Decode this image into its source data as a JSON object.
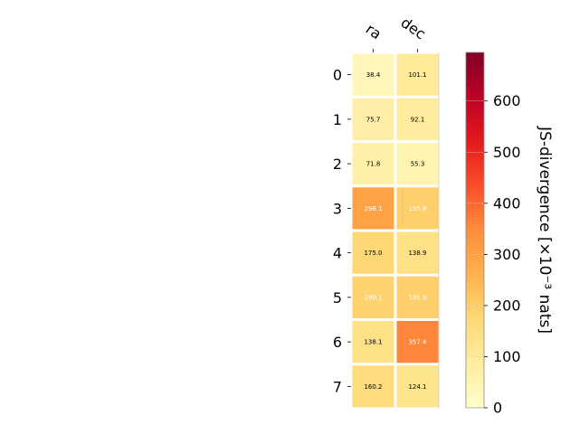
{
  "chart_data": {
    "type": "heatmap",
    "columns": [
      "ra",
      "dec"
    ],
    "rows": [
      "0",
      "1",
      "2",
      "3",
      "4",
      "5",
      "6",
      "7"
    ],
    "values": [
      [
        38.4,
        101.1
      ],
      [
        75.7,
        92.1
      ],
      [
        71.8,
        55.3
      ],
      [
        298.1,
        195.8
      ],
      [
        175.0,
        138.9
      ],
      [
        190.1,
        195.9
      ],
      [
        138.1,
        357.4
      ],
      [
        160.2,
        124.1
      ]
    ],
    "cell_labels": [
      [
        "38.4",
        "101.1"
      ],
      [
        "75.7",
        "92.1"
      ],
      [
        "71.8",
        "55.3"
      ],
      [
        "298.1",
        "195.8"
      ],
      [
        "175.0",
        "138.9"
      ],
      [
        "190.1",
        "195.9"
      ],
      [
        "138.1",
        "357.4"
      ],
      [
        "160.2",
        "124.1"
      ]
    ],
    "label_colors": [
      [
        "#000000",
        "#000000"
      ],
      [
        "#000000",
        "#000000"
      ],
      [
        "#000000",
        "#000000"
      ],
      [
        "#ffffff",
        "#ffffff"
      ],
      [
        "#000000",
        "#000000"
      ],
      [
        "#ffffff",
        "#ffffff"
      ],
      [
        "#000000",
        "#ffffff"
      ],
      [
        "#000000",
        "#000000"
      ]
    ],
    "colorbar": {
      "label": "JS-divergence [×10⁻³ nats]",
      "range": [
        0,
        695
      ],
      "ticks": [
        0,
        100,
        200,
        300,
        400,
        500,
        600
      ],
      "tick_labels": [
        "0",
        "100",
        "200",
        "300",
        "400",
        "500",
        "600"
      ],
      "colormap": "YlOrRd",
      "colormap_stops": [
        "#ffffcc",
        "#ffeda0",
        "#fed976",
        "#feb24c",
        "#fd8d3c",
        "#fc4e2a",
        "#e31a1c",
        "#bd0026",
        "#800026"
      ]
    },
    "x_tick_rotation": "rotated ~30°, placed on top",
    "grid": false,
    "legend": "colorbar on right"
  }
}
